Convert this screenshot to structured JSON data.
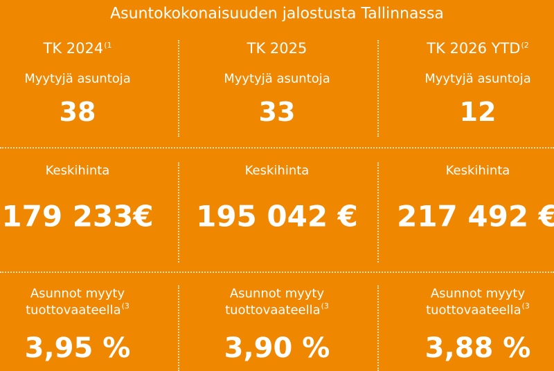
{
  "title": "Asuntokokonaisuuden jalostusta Tallinnassa",
  "columns": [
    {
      "period": "TK 2024",
      "period_note": "(1",
      "sold_label": "Myytyjä asuntoja",
      "sold": 38,
      "price_label": "Keskihinta",
      "price": "179 233€",
      "yield_label_1": "Asunnot myyty",
      "yield_label_2": "tuottovaateella",
      "yield_note": "(3",
      "yield": "3,95 %"
    },
    {
      "period": "TK 2025",
      "sold_label": "Myytyjä asuntoja",
      "sold": 33,
      "price_label": "Keskihinta",
      "price": "195 042 €",
      "yield_label_1": "Asunnot myyty",
      "yield_label_2": "tuottovaateella",
      "yield_note": "(3",
      "yield": "3,90 %"
    },
    {
      "period": "TK 2026 YTD",
      "period_note": "(2",
      "sold_label": "Myytyjä asuntoja",
      "sold": 12,
      "price_label": "Keskihinta",
      "price": "217 492 €",
      "yield_label_1": "Asunnot myyty",
      "yield_label_2": "tuottovaateella",
      "yield_note": "(3",
      "yield": "3,88 %"
    }
  ]
}
